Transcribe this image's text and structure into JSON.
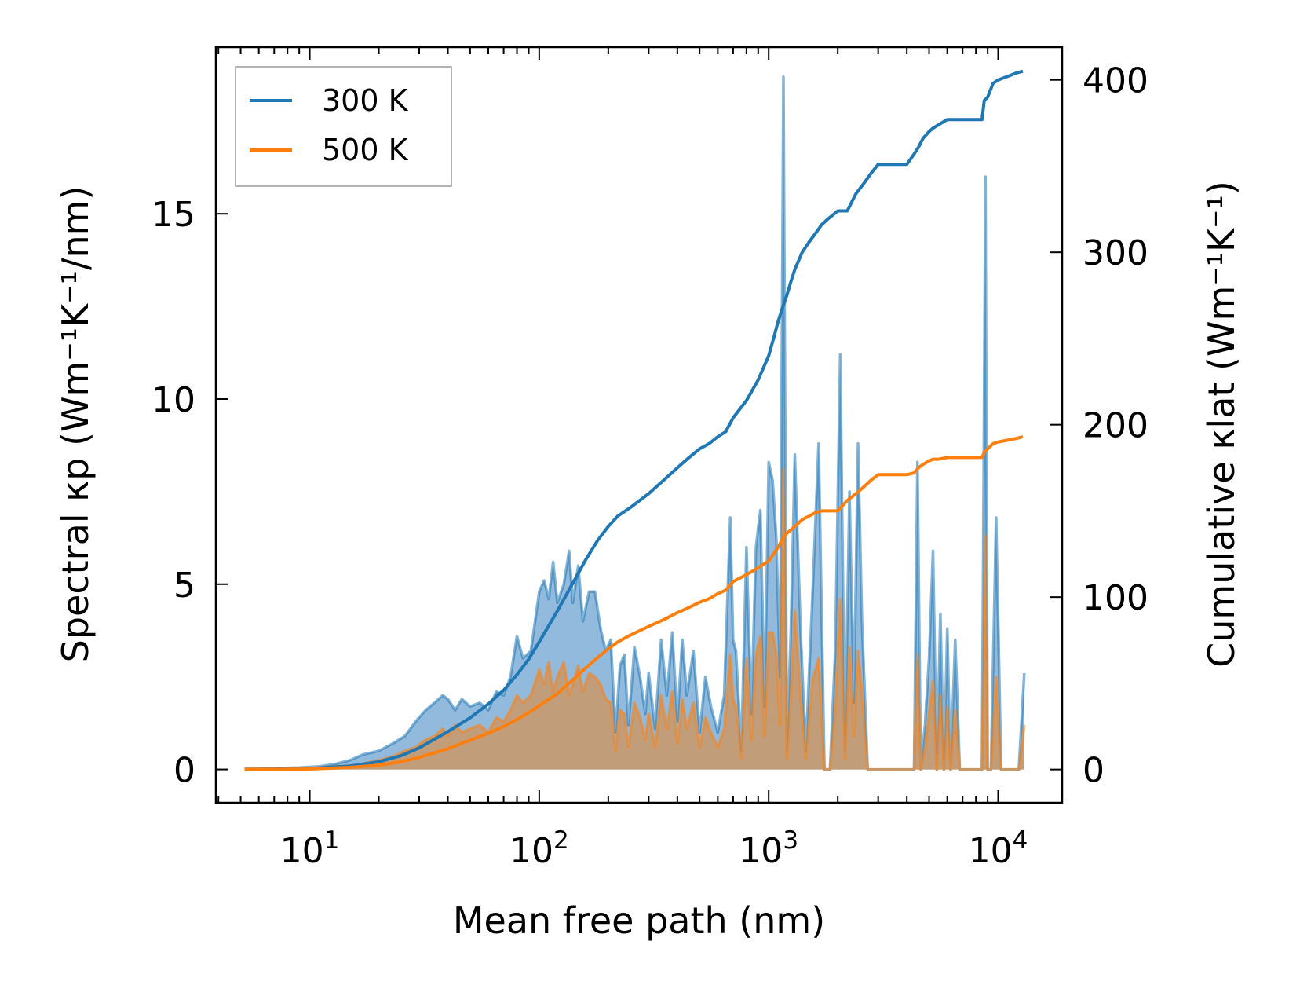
{
  "chart_data": {
    "type": "line",
    "title": "",
    "xlabel": "Mean free path (nm)",
    "ylabel_left": "Spectral κp (Wm⁻¹K⁻¹/nm)",
    "ylabel_right": "Cumulative κlat (Wm⁻¹K⁻¹)",
    "x_scale": "log",
    "xlim": [
      3.9,
      19000
    ],
    "ylim_left": [
      -0.9,
      19.5
    ],
    "ylim_right": [
      -19.3,
      419
    ],
    "x_ticks": [
      10,
      100,
      1000,
      10000
    ],
    "x_tick_labels": [
      {
        "base": "10",
        "exp": "1"
      },
      {
        "base": "10",
        "exp": "2"
      },
      {
        "base": "10",
        "exp": "3"
      },
      {
        "base": "10",
        "exp": "4"
      }
    ],
    "y_left_ticks": [
      0,
      5,
      10,
      15
    ],
    "y_left_tick_labels": [
      "0",
      "5",
      "10",
      "15"
    ],
    "y_right_ticks": [
      0,
      100,
      200,
      300,
      400
    ],
    "y_right_tick_labels": [
      "0",
      "100",
      "200",
      "300",
      "400"
    ],
    "legend": {
      "position": "top-left",
      "entries": [
        {
          "label": "300 K",
          "color": "#1f77b4"
        },
        {
          "label": "500 K",
          "color": "#ff7f0e"
        }
      ]
    },
    "colors": {
      "300K": "#1f77b4",
      "500K": "#ff7f0e",
      "fill_300K": "#86b3d8",
      "fill_500K": "#c89a6e"
    },
    "series": [
      {
        "name": "300 K spectral",
        "axis": "left",
        "kind": "area",
        "x": [
          5.2,
          7,
          9,
          11,
          13,
          15,
          17,
          20,
          23,
          26,
          29,
          32,
          35,
          38,
          40,
          43,
          46,
          50,
          55,
          60,
          65,
          70,
          75,
          80,
          85,
          92,
          100,
          105,
          110,
          115,
          120,
          128,
          135,
          140,
          148,
          155,
          165,
          175,
          185,
          195,
          205,
          215,
          225,
          235,
          245,
          260,
          275,
          290,
          300,
          320,
          340,
          360,
          380,
          400,
          420,
          440,
          470,
          500,
          530,
          560,
          600,
          640,
          680,
          700,
          720,
          760,
          800,
          840,
          880,
          920,
          960,
          1000,
          1040,
          1080,
          1120,
          1160,
          1200,
          1250,
          1300,
          1380,
          1450,
          1550,
          1650,
          1750,
          1850,
          1950,
          2050,
          2150,
          2250,
          2350,
          2450,
          2550,
          2700,
          2900,
          3100,
          3300,
          3600,
          4000,
          4300,
          4450,
          4600,
          4800,
          5000,
          5200,
          5400,
          5600,
          5800,
          6000,
          6200,
          6500,
          6800,
          7200,
          8000,
          8500,
          8800,
          9000,
          9300,
          9800,
          10300,
          10800,
          11500,
          12300,
          13000
        ],
        "values": [
          0.02,
          0.03,
          0.05,
          0.08,
          0.15,
          0.25,
          0.4,
          0.5,
          0.7,
          0.9,
          1.3,
          1.6,
          1.8,
          2.0,
          1.9,
          1.6,
          1.9,
          1.7,
          1.8,
          1.6,
          2.1,
          2.0,
          2.5,
          3.6,
          3.0,
          3.2,
          4.8,
          5.1,
          4.6,
          5.6,
          4.5,
          5.0,
          5.9,
          4.5,
          5.5,
          4.0,
          4.8,
          4.8,
          3.8,
          3.2,
          3.5,
          1.0,
          2.8,
          3.1,
          1.2,
          3.3,
          2.5,
          1.5,
          2.6,
          1.1,
          3.5,
          2.0,
          3.7,
          1.3,
          3.5,
          2.0,
          3.2,
          1.0,
          2.5,
          1.7,
          1.0,
          2.0,
          6.8,
          3.5,
          3.2,
          0.5,
          6.0,
          1.5,
          6.0,
          7.0,
          1.7,
          8.3,
          7.8,
          6.2,
          2.5,
          18.7,
          0.5,
          3.8,
          8.5,
          3.6,
          0.5,
          4.6,
          8.8,
          0.0,
          0.0,
          3.2,
          11.2,
          0.5,
          7.5,
          1.8,
          8.8,
          4.0,
          0.0,
          0.0,
          0.0,
          0.0,
          0.0,
          0.0,
          0.0,
          8.3,
          0.0,
          1.2,
          3.0,
          5.9,
          0.0,
          4.2,
          0.0,
          3.8,
          0.0,
          3.5,
          0.0,
          0.0,
          0.0,
          0.0,
          16.0,
          0.0,
          0.0,
          6.8,
          0.0,
          0.0,
          0.0,
          0.0,
          2.6
        ]
      },
      {
        "name": "500 K spectral",
        "axis": "left",
        "kind": "area",
        "x": [
          5.2,
          7,
          9,
          11,
          13,
          15,
          17,
          20,
          23,
          26,
          29,
          32,
          35,
          38,
          40,
          43,
          46,
          50,
          55,
          60,
          65,
          70,
          75,
          80,
          85,
          92,
          100,
          105,
          110,
          115,
          120,
          128,
          135,
          140,
          148,
          155,
          165,
          175,
          185,
          195,
          205,
          215,
          225,
          235,
          245,
          260,
          275,
          290,
          300,
          320,
          340,
          360,
          380,
          400,
          420,
          440,
          470,
          500,
          530,
          560,
          600,
          640,
          680,
          700,
          720,
          760,
          800,
          840,
          880,
          920,
          960,
          1000,
          1040,
          1080,
          1120,
          1160,
          1200,
          1250,
          1300,
          1380,
          1450,
          1550,
          1650,
          1750,
          1850,
          1950,
          2050,
          2150,
          2250,
          2350,
          2450,
          2550,
          2700,
          2900,
          3100,
          3300,
          3600,
          4000,
          4300,
          4450,
          4600,
          4800,
          5000,
          5200,
          5400,
          5600,
          5800,
          6000,
          6200,
          6500,
          6800,
          7200,
          8000,
          8500,
          8800,
          9000,
          9300,
          9800,
          10300,
          10800,
          11500,
          12300,
          13000
        ],
        "values": [
          0.01,
          0.02,
          0.03,
          0.05,
          0.08,
          0.1,
          0.15,
          0.25,
          0.35,
          0.5,
          0.6,
          0.8,
          0.9,
          1.1,
          0.9,
          1.2,
          1.0,
          1.1,
          1.2,
          1.0,
          1.4,
          1.3,
          1.6,
          2.0,
          1.8,
          2.0,
          2.7,
          2.3,
          2.9,
          2.1,
          2.5,
          2.9,
          2.0,
          2.3,
          2.8,
          2.1,
          2.6,
          2.5,
          2.3,
          1.9,
          1.8,
          0.5,
          1.6,
          1.5,
          0.6,
          1.8,
          1.4,
          0.8,
          1.5,
          0.6,
          2.0,
          1.1,
          2.1,
          0.7,
          1.9,
          1.1,
          1.8,
          0.6,
          1.4,
          1.0,
          0.6,
          1.1,
          3.1,
          1.9,
          1.7,
          0.3,
          3.0,
          0.8,
          3.1,
          3.6,
          0.9,
          3.7,
          3.7,
          3.1,
          1.2,
          8.1,
          0.3,
          2.0,
          4.3,
          1.9,
          0.3,
          2.4,
          3.0,
          0.0,
          0.0,
          1.7,
          4.6,
          0.3,
          3.3,
          0.9,
          3.2,
          2.1,
          0.0,
          0.0,
          0.0,
          0.0,
          0.0,
          0.0,
          0.0,
          3.1,
          0.0,
          0.6,
          1.5,
          2.4,
          0.0,
          2.0,
          0.0,
          1.7,
          0.0,
          1.6,
          0.0,
          0.0,
          0.0,
          0.0,
          6.3,
          0.0,
          0.0,
          2.5,
          0.0,
          0.0,
          0.0,
          0.0,
          1.2
        ]
      },
      {
        "name": "300 K",
        "axis": "right",
        "kind": "line",
        "x": [
          5.2,
          10,
          15,
          20,
          25,
          30,
          40,
          50,
          60,
          70,
          80,
          90,
          100,
          120,
          140,
          160,
          180,
          200,
          220,
          250,
          300,
          350,
          400,
          450,
          500,
          550,
          600,
          650,
          700,
          800,
          900,
          1000,
          1050,
          1100,
          1150,
          1200,
          1250,
          1300,
          1400,
          1500,
          1600,
          1700,
          1800,
          2000,
          2200,
          2400,
          2600,
          2800,
          3000,
          3200,
          3400,
          3700,
          4000,
          4300,
          4500,
          4700,
          5000,
          5200,
          5500,
          6000,
          6500,
          7000,
          7500,
          8000,
          8500,
          8700,
          9000,
          9500,
          10000,
          11000,
          12000,
          12800
        ],
        "values": [
          0.0,
          0.5,
          2.0,
          4.5,
          8.0,
          12.5,
          22.0,
          30.0,
          38.0,
          46.0,
          55.0,
          64.0,
          74.0,
          92.0,
          108.0,
          122.0,
          133.0,
          141.0,
          147.0,
          152.0,
          160.0,
          168.0,
          175.0,
          181.0,
          186.0,
          189.0,
          193.0,
          196.0,
          204.0,
          214.0,
          226.0,
          240.0,
          250.0,
          260.0,
          268.0,
          275.0,
          283.0,
          290.0,
          300.0,
          306.0,
          311.0,
          316.0,
          319.0,
          324.0,
          324.0,
          334.0,
          340.0,
          346.0,
          351.0,
          351.0,
          351.0,
          351.0,
          351.0,
          357.0,
          361.0,
          366.0,
          370.0,
          372.0,
          374.0,
          377.0,
          377.0,
          377.0,
          377.0,
          377.0,
          377.0,
          388.0,
          390.0,
          398.0,
          400.0,
          402.0,
          404.0,
          405.0
        ]
      },
      {
        "name": "500 K",
        "axis": "right",
        "kind": "line",
        "x": [
          5.2,
          10,
          15,
          20,
          25,
          30,
          40,
          50,
          60,
          70,
          80,
          90,
          100,
          120,
          140,
          160,
          180,
          200,
          220,
          250,
          300,
          350,
          400,
          450,
          500,
          550,
          600,
          650,
          700,
          800,
          900,
          1000,
          1050,
          1100,
          1150,
          1200,
          1250,
          1300,
          1400,
          1500,
          1600,
          1700,
          1800,
          2000,
          2200,
          2400,
          2600,
          2800,
          3000,
          3200,
          3400,
          3700,
          4000,
          4300,
          4500,
          4700,
          5000,
          5200,
          5500,
          6000,
          6500,
          7000,
          7500,
          8000,
          8500,
          8700,
          9000,
          9500,
          10000,
          11000,
          12000,
          12800
        ],
        "values": [
          0.0,
          0.3,
          1.2,
          2.5,
          4.5,
          7.0,
          12.0,
          17.0,
          21.0,
          25.0,
          29.0,
          33.0,
          37.0,
          44.0,
          52.0,
          59.0,
          65.0,
          70.0,
          74.0,
          78.0,
          83.0,
          87.0,
          91.0,
          94.0,
          97.0,
          99.0,
          102.0,
          104.0,
          109.0,
          113.0,
          117.0,
          121.0,
          125.0,
          129.0,
          134.0,
          137.0,
          139.0,
          141.0,
          145.0,
          147.0,
          149.0,
          150.0,
          150.0,
          150.0,
          156.0,
          160.0,
          164.0,
          168.0,
          171.0,
          171.0,
          171.0,
          171.0,
          171.0,
          172.0,
          175.0,
          177.0,
          179.0,
          180.0,
          180.0,
          181.0,
          181.0,
          181.0,
          181.0,
          181.0,
          181.0,
          184.0,
          186.0,
          189.0,
          190.0,
          191.0,
          192.0,
          193.0
        ]
      }
    ]
  }
}
